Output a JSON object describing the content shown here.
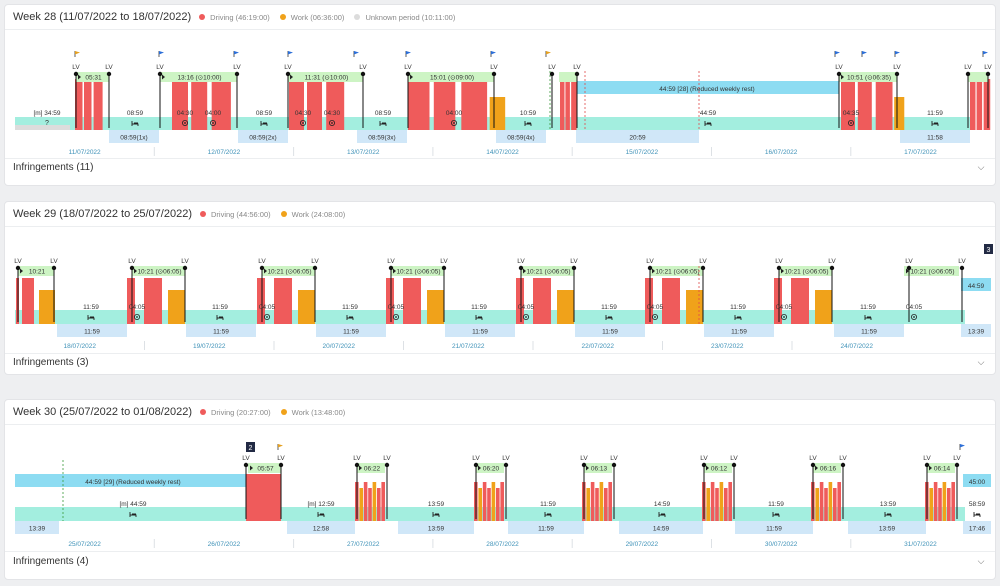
{
  "colors": {
    "driving": "#ef5b5b",
    "work": "#f0a21a",
    "rest": "#a3eedf",
    "rest_long": "#8ddcf2",
    "pill": "#cdf4c4",
    "date_box": "#d0e7f8",
    "unknown": "#dcdcdc",
    "date_text": "#3f92b8",
    "flag_blue": "#2b6ed8",
    "flag_orange": "#e5a020",
    "badge": "#222a44"
  },
  "icons": {
    "chevron": "chevron-down-icon",
    "bed": "bed-icon",
    "target": "target-icon",
    "flag": "flag-icon",
    "play": "play-icon"
  },
  "weeks": [
    {
      "title": "Week 28 (11/07/2022 to 18/07/2022)",
      "legend": [
        {
          "label": "Driving (46:19:00)",
          "color": "#ef5b5b"
        },
        {
          "label": "Work (06:36:00)",
          "color": "#f0a21a"
        },
        {
          "label": "Unknown period (10:11:00)",
          "color": "#dcdcdc"
        }
      ],
      "infringements": "Infringements (11)",
      "dates": [
        "11/07/2022",
        "12/07/2022",
        "13/07/2022",
        "14/07/2022",
        "15/07/2022",
        "16/07/2022",
        "17/07/2022"
      ],
      "pills": [
        {
          "day": 0,
          "text": "05:31"
        },
        {
          "day": 1,
          "text": "13:16 (⊙10:00)"
        },
        {
          "day": 2,
          "text": "11:31 (⊙10:00)"
        },
        {
          "day": 3,
          "text": "15:01 (⊙09:00)"
        },
        {
          "day": 5,
          "text": "10:51 (⊙06:35)"
        }
      ],
      "long_rests": [
        {
          "text": "44:59 [28] (Reduced weekly rest)"
        }
      ],
      "rest_labels": [
        "[m] 34:59",
        "?",
        "08:59",
        "08:59",
        "10:59",
        "44:59",
        "11:59"
      ],
      "bar_labels": [
        "04:30",
        "04:00",
        "04:30",
        "04:30",
        "04:00",
        "04:35"
      ],
      "box_labels": [
        "08:59(1x)",
        "08:59(2x)",
        "08:59(3x)",
        "08:59(4x)",
        "20:59",
        "11:58"
      ],
      "lv": "LV"
    },
    {
      "title": "Week 29 (18/07/2022 to 25/07/2022)",
      "legend": [
        {
          "label": "Driving (44:56:00)",
          "color": "#ef5b5b"
        },
        {
          "label": "Work (24:08:00)",
          "color": "#f0a21a"
        }
      ],
      "infringements": "Infringements (3)",
      "badge": "3",
      "dates": [
        "18/07/2022",
        "19/07/2022",
        "20/07/2022",
        "21/07/2022",
        "22/07/2022",
        "23/07/2022",
        "24/07/2022"
      ],
      "pills": [
        {
          "day": 0,
          "text": "10:21"
        },
        {
          "day": 1,
          "text": "10:21 (⊙06:05)"
        },
        {
          "day": 2,
          "text": "10:21 (⊙06:05)"
        },
        {
          "day": 3,
          "text": "10:21 (⊙06:05)"
        },
        {
          "day": 4,
          "text": "10:21 (⊙06:05)"
        },
        {
          "day": 5,
          "text": "10:21 (⊙06:05)"
        },
        {
          "day": 6,
          "text": "10:21 (⊙06:05)"
        }
      ],
      "long_rests": [
        {
          "text": "44:59"
        }
      ],
      "rest_labels": [
        "11:59",
        "11:59",
        "11:59",
        "11:59",
        "11:59",
        "11:59",
        "11:59"
      ],
      "bar_labels": [
        "04:05",
        "04:05",
        "04:05",
        "04:05",
        "04:05",
        "04:05",
        "04:05"
      ],
      "box_labels": [
        "11:59",
        "11:59",
        "11:59",
        "11:59",
        "11:59",
        "11:59",
        "11:59",
        "13:39"
      ],
      "lv": "LV"
    },
    {
      "title": "Week 30 (25/07/2022 to 01/08/2022)",
      "legend": [
        {
          "label": "Driving (20:27:00)",
          "color": "#ef5b5b"
        },
        {
          "label": "Work (13:48:00)",
          "color": "#f0a21a"
        }
      ],
      "infringements": "Infringements (4)",
      "badge": "2",
      "dates": [
        "25/07/2022",
        "26/07/2022",
        "27/07/2022",
        "28/07/2022",
        "29/07/2022",
        "30/07/2022",
        "31/07/2022"
      ],
      "pills": [
        {
          "day": 1,
          "text": "05:57"
        },
        {
          "day": 2,
          "text": "06:22"
        },
        {
          "day": 3,
          "text": "06:20"
        },
        {
          "day": 4,
          "text": "06:13"
        },
        {
          "day": 5,
          "text": "06:12"
        },
        {
          "day": 5,
          "text": "06:16"
        },
        {
          "day": 6,
          "text": "06:14"
        }
      ],
      "long_rests": [
        {
          "text": "44:59 [29] (Reduced weekly rest)"
        },
        {
          "text": "45:00"
        }
      ],
      "rest_labels": [
        "[m] 44:59",
        "[m] 12:59",
        "13:59",
        "11:59",
        "14:59",
        "11:59",
        "13:59",
        "58:59"
      ],
      "box_labels": [
        "13:39",
        "12:58",
        "13:59",
        "11:59",
        "14:59",
        "11:59",
        "13:59",
        "17:46"
      ],
      "lv": "LV"
    }
  ]
}
